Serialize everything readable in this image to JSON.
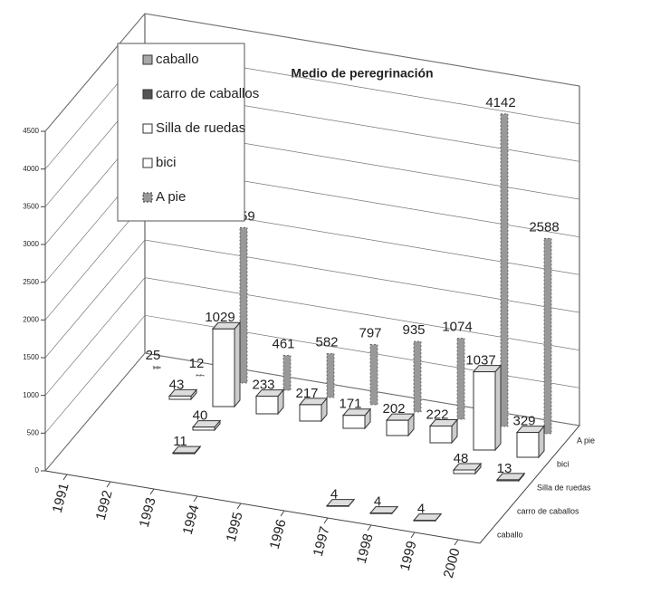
{
  "chart_data": {
    "type": "bar3d",
    "title": "Medio de peregrinación",
    "categories": [
      "1991",
      "1992",
      "1993",
      "1994",
      "1995",
      "1996",
      "1997",
      "1998",
      "1999",
      "2000"
    ],
    "series": [
      {
        "name": "caballo",
        "color": "#a8a8a8",
        "values": [
          null,
          null,
          null,
          null,
          null,
          null,
          4,
          4,
          4,
          null
        ]
      },
      {
        "name": "carro de caballos",
        "color": "#555555",
        "values": [
          null,
          null,
          11,
          null,
          null,
          null,
          null,
          null,
          null,
          null
        ]
      },
      {
        "name": "Silla de ruedas",
        "color": "#ffffff",
        "values": [
          null,
          null,
          40,
          null,
          null,
          null,
          null,
          null,
          48,
          13
        ]
      },
      {
        "name": "bici",
        "color": "#ffffff",
        "values": [
          null,
          43,
          1029,
          233,
          217,
          171,
          202,
          222,
          1037,
          329
        ]
      },
      {
        "name": "A pie",
        "color": "#999999",
        "values": [
          25,
          12,
          2059,
          461,
          582,
          797,
          935,
          1074,
          4142,
          2588
        ]
      }
    ],
    "ylim": [
      0,
      4500
    ],
    "yticks": [
      0,
      500,
      1000,
      1500,
      2000,
      2500,
      3000,
      3500,
      4000,
      4500
    ],
    "grid": true
  }
}
